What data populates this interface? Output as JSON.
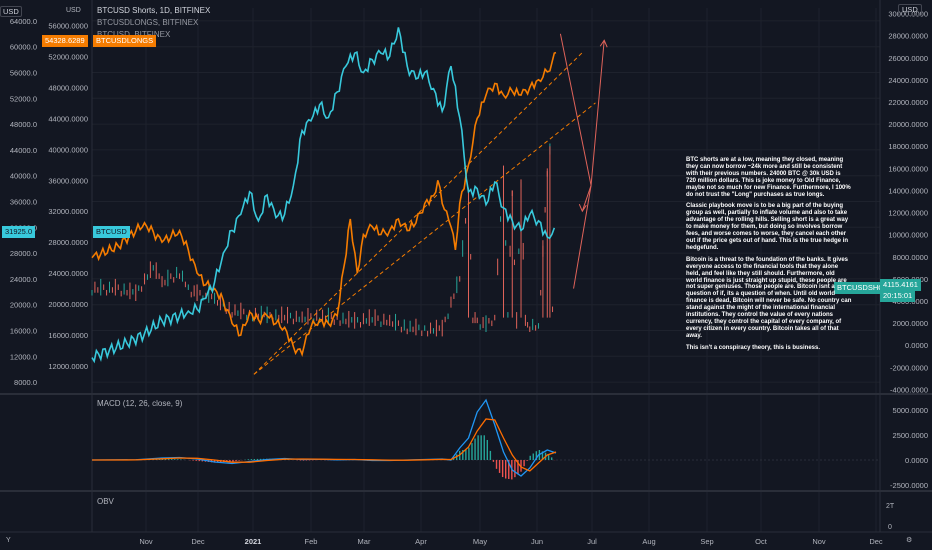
{
  "header": {
    "title": "BTCUSD Shorts, 1D, BITFINEX",
    "series_2": "BTCUSDLONGS, BITFINEX",
    "series_3": "BTCUSD, BITFINEX",
    "currency_right": "USD",
    "currency_left": "USD"
  },
  "badges": {
    "longs_value": "54328.6289",
    "longs_name": "BTCUSDLONGS",
    "btc_value": "31925.0",
    "btc_name": "BTCUSD",
    "shorts_name": "BTCUSDSHORTS",
    "shorts_value": "4115.4161",
    "shorts_time": "20:15:01"
  },
  "colors": {
    "background": "#131722",
    "longs": "#f57c00",
    "btc": "#38c9dc",
    "shorts": "#e0635a",
    "shorts_green": "#26a69a",
    "macd": "#2196f3",
    "signal": "#ff6d00",
    "hist_pos": "#26a69a",
    "hist_neg": "#ef5350"
  },
  "note": {
    "p1": "BTC shorts are at a low, meaning they closed, meaning they can now borrow ~24k more and still be consistent with their previous numbers. 24000 BTC @ 30k USD is 720 million dollars. This is joke money to Old Finance, maybe not so much for new Finance. Furthermore, I 100% do not trust the \"Long\" purchases as true longs.",
    "p2": "Classic playbook move is to be a big part of the buying group as well, partially to inflate volume and also to take advantage of the rolling hills. Selling short is a great way to make money for them, but doing so involves borrow fees, and worse comes to worse, they cancel each other out if the price gets out of hand. This is the true hedge in hedgefund.",
    "p3": "Bitcoin is a threat to the foundation of the banks. It gives everyone access to the financial tools that they alone held, and feel like they still should. Furthermore, old world finance is just straight up stupid, these people are not super geniuses. Those people are. Bitcoin isnt a question of if, its a question of when. Until old world finance is dead, Bitcoin will never be safe. No country can stand against the might of the international financial institutions. They control the value of every nations currency, they control the capital of every company, of every citizen in every country. Bitcoin takes all of that away.",
    "p4": "This isn't a conspiracy theory, this is business."
  },
  "panes": {
    "macd_label": "MACD (12, 26, close, 9)",
    "obv_label": "OBV",
    "obv_tick": "2T",
    "obv_zero": "0"
  },
  "footer": {
    "corner_left": "Y",
    "corner_right": "⚙"
  },
  "chart_data": {
    "type": "line",
    "x_labels": [
      "Nov",
      "Dec",
      "2021",
      "Feb",
      "Mar",
      "Apr",
      "May",
      "Jun",
      "Jul",
      "Aug",
      "Sep",
      "Oct",
      "Nov",
      "Dec"
    ],
    "left_axis_a": {
      "ticks": [
        "64000.0",
        "60000.0",
        "56000.0",
        "52000.0",
        "48000.0",
        "44000.0",
        "40000.0",
        "36000.0",
        "32000.0",
        "28000.0",
        "24000.0",
        "20000.0",
        "16000.0",
        "12000.0",
        "8000.0"
      ],
      "range": [
        8000,
        64000
      ]
    },
    "left_axis_b": {
      "ticks": [
        "56000.0000",
        "52000.0000",
        "48000.0000",
        "44000.0000",
        "40000.0000",
        "36000.0000",
        "32000.0000",
        "28000.0000",
        "24000.0000",
        "20000.0000",
        "16000.0000",
        "12000.0000"
      ],
      "range": [
        12000,
        56000
      ]
    },
    "right_axis": {
      "ticks": [
        "30000.0000",
        "28000.0000",
        "26000.0000",
        "24000.0000",
        "22000.0000",
        "20000.0000",
        "18000.0000",
        "16000.0000",
        "14000.0000",
        "12000.0000",
        "10000.0000",
        "8000.0000",
        "6000.0000",
        "4000.0000",
        "2000.0000",
        "0.0000",
        "-2000.0000",
        "-4000.0000"
      ],
      "range": [
        -4000,
        30000
      ]
    },
    "macd_axis": {
      "ticks": [
        "5000.0000",
        "2500.0000",
        "0.0000",
        "-2500.0000"
      ],
      "range": [
        -2500,
        5000
      ]
    },
    "series": [
      {
        "name": "BTCUSDLONGS",
        "axis": "left_b",
        "points": [
          [
            0,
            26000
          ],
          [
            3,
            27500
          ],
          [
            6,
            30500
          ],
          [
            8,
            28000
          ],
          [
            10,
            29500
          ],
          [
            11,
            27000
          ],
          [
            12,
            24000
          ],
          [
            13,
            22500
          ],
          [
            14,
            22000
          ],
          [
            15,
            20500
          ],
          [
            16,
            17500
          ],
          [
            17,
            16000
          ],
          [
            18,
            19000
          ],
          [
            19,
            18000
          ],
          [
            20,
            18500
          ],
          [
            21,
            17500
          ],
          [
            22,
            17000
          ],
          [
            23,
            14500
          ],
          [
            24,
            13500
          ],
          [
            24.5,
            16000
          ],
          [
            25,
            17000
          ],
          [
            26,
            18000
          ],
          [
            27,
            17500
          ],
          [
            28,
            18500
          ],
          [
            28.8,
            25000
          ],
          [
            29.5,
            31000
          ],
          [
            30.3,
            24000
          ],
          [
            31,
            29000
          ],
          [
            32,
            30000
          ],
          [
            33,
            29000
          ],
          [
            34,
            29500
          ],
          [
            35,
            31000
          ],
          [
            36,
            29500
          ],
          [
            37,
            30500
          ],
          [
            38,
            33000
          ],
          [
            39,
            34000
          ],
          [
            39.5,
            36000
          ],
          [
            40,
            33000
          ],
          [
            40.5,
            32000
          ],
          [
            41,
            30000
          ],
          [
            41.5,
            27000
          ],
          [
            42,
            33000
          ],
          [
            43,
            38000
          ],
          [
            44,
            44000
          ],
          [
            45,
            47000
          ],
          [
            46,
            48500
          ],
          [
            47,
            47000
          ],
          [
            48,
            47500
          ],
          [
            49,
            47000
          ],
          [
            50,
            48000
          ],
          [
            51,
            49000
          ],
          [
            52,
            50000
          ],
          [
            52.6,
            51500
          ],
          [
            53,
            52500
          ]
        ]
      },
      {
        "name": "BTCUSD",
        "axis": "left_a",
        "points": [
          [
            0,
            11800
          ],
          [
            2,
            13000
          ],
          [
            4,
            14000
          ],
          [
            6,
            15500
          ],
          [
            8,
            17500
          ],
          [
            10,
            18300
          ],
          [
            11,
            19000
          ],
          [
            12,
            19300
          ],
          [
            13,
            21000
          ],
          [
            14,
            23500
          ],
          [
            15,
            28000
          ],
          [
            16,
            31500
          ],
          [
            17,
            34000
          ],
          [
            18,
            37500
          ],
          [
            19,
            33000
          ],
          [
            20,
            37000
          ],
          [
            21,
            33500
          ],
          [
            22,
            34000
          ],
          [
            23,
            38500
          ],
          [
            24,
            47000
          ],
          [
            25,
            48500
          ],
          [
            26,
            51000
          ],
          [
            27,
            49000
          ],
          [
            28,
            53000
          ],
          [
            29,
            57000
          ],
          [
            30,
            59000
          ],
          [
            31,
            56000
          ],
          [
            32,
            58000
          ],
          [
            33,
            59000
          ],
          [
            34,
            58500
          ],
          [
            35,
            63000
          ],
          [
            36,
            57000
          ],
          [
            37,
            55000
          ],
          [
            38,
            56000
          ],
          [
            39,
            53500
          ],
          [
            40,
            50000
          ],
          [
            41,
            57000
          ],
          [
            42,
            49000
          ],
          [
            43,
            37500
          ],
          [
            44,
            38000
          ],
          [
            45,
            35500
          ],
          [
            46,
            39000
          ],
          [
            47,
            35000
          ],
          [
            48,
            33000
          ],
          [
            49,
            31500
          ],
          [
            50,
            34000
          ],
          [
            51,
            33000
          ],
          [
            52,
            30500
          ],
          [
            52.8,
            31900
          ]
        ]
      }
    ],
    "shorts_line": {
      "name": "BTCUSDSHORTS",
      "axis": "right",
      "points": [
        [
          0,
          5500
        ],
        [
          3,
          5500
        ],
        [
          5,
          5000
        ],
        [
          7,
          7500
        ],
        [
          8,
          6000
        ],
        [
          10,
          7000
        ],
        [
          11,
          5500
        ],
        [
          12,
          5000
        ],
        [
          13,
          5000
        ],
        [
          14,
          4500
        ],
        [
          16,
          3500
        ],
        [
          18,
          3200
        ],
        [
          20,
          3000
        ],
        [
          22,
          3000
        ],
        [
          24,
          2800
        ],
        [
          26,
          3000
        ],
        [
          28,
          2800
        ],
        [
          30,
          2500
        ],
        [
          32,
          2800
        ],
        [
          34,
          2500
        ],
        [
          36,
          2000
        ],
        [
          38,
          1800
        ],
        [
          40,
          1800
        ],
        [
          42,
          6500
        ],
        [
          43,
          14000
        ],
        [
          43.5,
          3000
        ],
        [
          44,
          2500
        ],
        [
          45,
          2200
        ],
        [
          46,
          3000
        ],
        [
          47,
          16000
        ],
        [
          47.5,
          3500
        ],
        [
          48,
          14000
        ],
        [
          48.5,
          2500
        ],
        [
          49,
          15000
        ],
        [
          49.5,
          2500
        ],
        [
          50,
          2200
        ],
        [
          51,
          2000
        ],
        [
          51.5,
          9000
        ],
        [
          52,
          16000
        ],
        [
          52.3,
          18000
        ],
        [
          52.6,
          4000
        ],
        [
          53,
          4115
        ]
      ]
    },
    "trendlines": [
      {
        "from": [
          18.5,
          13000
        ],
        "to": [
          56,
          52500
        ],
        "axis": "left_b"
      },
      {
        "from": [
          18.5,
          13000
        ],
        "to": [
          57.5,
          46000
        ],
        "axis": "left_b"
      }
    ],
    "macd": {
      "macd_line": [
        [
          0,
          0
        ],
        [
          5,
          20
        ],
        [
          8,
          200
        ],
        [
          10,
          250
        ],
        [
          12,
          100
        ],
        [
          14,
          -200
        ],
        [
          16,
          -350
        ],
        [
          18,
          -150
        ],
        [
          20,
          50
        ],
        [
          22,
          150
        ],
        [
          24,
          50
        ],
        [
          26,
          80
        ],
        [
          28,
          20
        ],
        [
          30,
          50
        ],
        [
          32,
          -50
        ],
        [
          34,
          -50
        ],
        [
          36,
          0
        ],
        [
          38,
          50
        ],
        [
          40,
          100
        ],
        [
          41,
          0
        ],
        [
          42,
          1200
        ],
        [
          43,
          2200
        ],
        [
          44,
          4800
        ],
        [
          45,
          6000
        ],
        [
          46,
          3500
        ],
        [
          47,
          800
        ],
        [
          48,
          -1000
        ],
        [
          49,
          -1600
        ],
        [
          50,
          -800
        ],
        [
          51,
          500
        ],
        [
          52,
          1000
        ],
        [
          53,
          700
        ]
      ],
      "signal_line": [
        [
          0,
          0
        ],
        [
          5,
          10
        ],
        [
          8,
          120
        ],
        [
          10,
          200
        ],
        [
          12,
          170
        ],
        [
          14,
          0
        ],
        [
          16,
          -220
        ],
        [
          18,
          -220
        ],
        [
          20,
          -50
        ],
        [
          22,
          80
        ],
        [
          24,
          100
        ],
        [
          26,
          80
        ],
        [
          28,
          60
        ],
        [
          30,
          50
        ],
        [
          32,
          20
        ],
        [
          34,
          -20
        ],
        [
          36,
          -20
        ],
        [
          38,
          20
        ],
        [
          40,
          60
        ],
        [
          41,
          50
        ],
        [
          42,
          500
        ],
        [
          43,
          1300
        ],
        [
          44,
          2900
        ],
        [
          45,
          4100
        ],
        [
          46,
          4000
        ],
        [
          47,
          2200
        ],
        [
          48,
          500
        ],
        [
          49,
          -700
        ],
        [
          50,
          -1100
        ],
        [
          51,
          -300
        ],
        [
          52,
          500
        ],
        [
          53,
          800
        ]
      ]
    },
    "grid": true,
    "legend_position": "top-left"
  }
}
